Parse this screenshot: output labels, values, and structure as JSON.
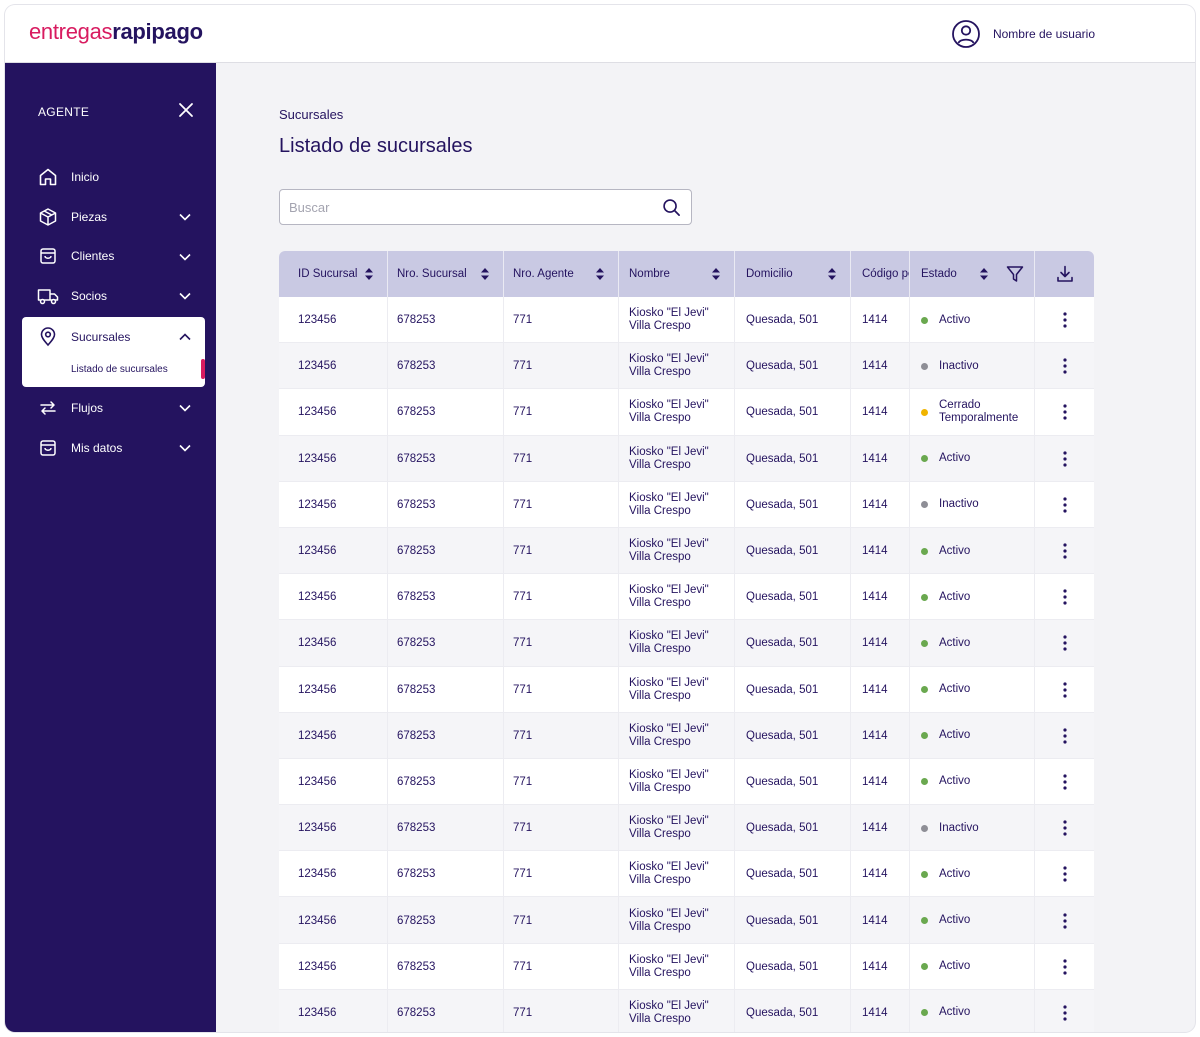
{
  "header": {
    "logo_part1": "entregas",
    "logo_part2": "rapipago",
    "user_name": "Nombre de usuario"
  },
  "sidebar": {
    "title": "AGENTE",
    "items": [
      {
        "label": "Inicio",
        "icon": "home-icon",
        "expandable": false
      },
      {
        "label": "Piezas",
        "icon": "box-icon",
        "expandable": true
      },
      {
        "label": "Clientes",
        "icon": "bag-icon",
        "expandable": true
      },
      {
        "label": "Socios",
        "icon": "truck-icon",
        "expandable": true
      },
      {
        "label": "Sucursales",
        "icon": "location-pin-icon",
        "expandable": true,
        "open": true,
        "sub_items": [
          "Listado de sucursales"
        ]
      },
      {
        "label": "Flujos",
        "icon": "arrows-swap-icon",
        "expandable": true
      },
      {
        "label": "Mis datos",
        "icon": "bag-icon",
        "expandable": true
      }
    ]
  },
  "main": {
    "breadcrumb": "Sucursales",
    "title": "Listado de sucursales",
    "search_placeholder": "Buscar"
  },
  "colors": {
    "brand_dark": "#24135f",
    "brand_accent": "#d81b60",
    "status_active": "#6aa84f",
    "status_inactive": "#8e8e96",
    "status_temp": "#f0b400"
  },
  "table": {
    "columns": [
      "ID Sucursal",
      "Nro. Sucursal",
      "Nro. Agente",
      "Nombre",
      "Domicilio",
      "Código postal",
      "Estado"
    ],
    "rows": [
      {
        "id": "123456",
        "nro": "678253",
        "agente": "771",
        "nombre1": "Kiosko \"El Jevi\"",
        "nombre2": "Villa Crespo",
        "domicilio": "Quesada, 501",
        "cp": "1414",
        "estado": "Activo",
        "status": "active"
      },
      {
        "id": "123456",
        "nro": "678253",
        "agente": "771",
        "nombre1": "Kiosko \"El Jevi\"",
        "nombre2": "Villa Crespo",
        "domicilio": "Quesada, 501",
        "cp": "1414",
        "estado": "Inactivo",
        "status": "inactive"
      },
      {
        "id": "123456",
        "nro": "678253",
        "agente": "771",
        "nombre1": "Kiosko \"El Jevi\"",
        "nombre2": "Villa Crespo",
        "domicilio": "Quesada, 501",
        "cp": "1414",
        "estado": "Cerrado Temporalmente",
        "status": "temp"
      },
      {
        "id": "123456",
        "nro": "678253",
        "agente": "771",
        "nombre1": "Kiosko \"El Jevi\"",
        "nombre2": "Villa Crespo",
        "domicilio": "Quesada, 501",
        "cp": "1414",
        "estado": "Activo",
        "status": "active"
      },
      {
        "id": "123456",
        "nro": "678253",
        "agente": "771",
        "nombre1": "Kiosko \"El Jevi\"",
        "nombre2": "Villa Crespo",
        "domicilio": "Quesada, 501",
        "cp": "1414",
        "estado": "Inactivo",
        "status": "inactive"
      },
      {
        "id": "123456",
        "nro": "678253",
        "agente": "771",
        "nombre1": "Kiosko \"El Jevi\"",
        "nombre2": "Villa Crespo",
        "domicilio": "Quesada, 501",
        "cp": "1414",
        "estado": "Activo",
        "status": "active"
      },
      {
        "id": "123456",
        "nro": "678253",
        "agente": "771",
        "nombre1": "Kiosko \"El Jevi\"",
        "nombre2": "Villa Crespo",
        "domicilio": "Quesada, 501",
        "cp": "1414",
        "estado": "Activo",
        "status": "active"
      },
      {
        "id": "123456",
        "nro": "678253",
        "agente": "771",
        "nombre1": "Kiosko \"El Jevi\"",
        "nombre2": "Villa Crespo",
        "domicilio": "Quesada, 501",
        "cp": "1414",
        "estado": "Activo",
        "status": "active"
      },
      {
        "id": "123456",
        "nro": "678253",
        "agente": "771",
        "nombre1": "Kiosko \"El Jevi\"",
        "nombre2": "Villa Crespo",
        "domicilio": "Quesada, 501",
        "cp": "1414",
        "estado": "Activo",
        "status": "active"
      },
      {
        "id": "123456",
        "nro": "678253",
        "agente": "771",
        "nombre1": "Kiosko \"El Jevi\"",
        "nombre2": "Villa Crespo",
        "domicilio": "Quesada, 501",
        "cp": "1414",
        "estado": "Activo",
        "status": "active"
      },
      {
        "id": "123456",
        "nro": "678253",
        "agente": "771",
        "nombre1": "Kiosko \"El Jevi\"",
        "nombre2": "Villa Crespo",
        "domicilio": "Quesada, 501",
        "cp": "1414",
        "estado": "Activo",
        "status": "active"
      },
      {
        "id": "123456",
        "nro": "678253",
        "agente": "771",
        "nombre1": "Kiosko \"El Jevi\"",
        "nombre2": "Villa Crespo",
        "domicilio": "Quesada, 501",
        "cp": "1414",
        "estado": "Inactivo",
        "status": "inactive"
      },
      {
        "id": "123456",
        "nro": "678253",
        "agente": "771",
        "nombre1": "Kiosko \"El Jevi\"",
        "nombre2": "Villa Crespo",
        "domicilio": "Quesada, 501",
        "cp": "1414",
        "estado": "Activo",
        "status": "active"
      },
      {
        "id": "123456",
        "nro": "678253",
        "agente": "771",
        "nombre1": "Kiosko \"El Jevi\"",
        "nombre2": "Villa Crespo",
        "domicilio": "Quesada, 501",
        "cp": "1414",
        "estado": "Activo",
        "status": "active"
      },
      {
        "id": "123456",
        "nro": "678253",
        "agente": "771",
        "nombre1": "Kiosko \"El Jevi\"",
        "nombre2": "Villa Crespo",
        "domicilio": "Quesada, 501",
        "cp": "1414",
        "estado": "Activo",
        "status": "active"
      },
      {
        "id": "123456",
        "nro": "678253",
        "agente": "771",
        "nombre1": "Kiosko \"El Jevi\"",
        "nombre2": "Villa Crespo",
        "domicilio": "Quesada, 501",
        "cp": "1414",
        "estado": "Activo",
        "status": "active"
      }
    ]
  }
}
